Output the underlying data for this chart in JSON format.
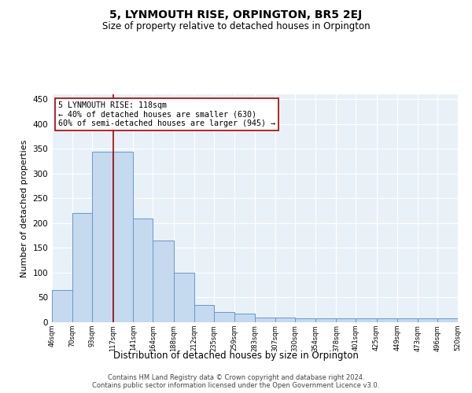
{
  "title": "5, LYNMOUTH RISE, ORPINGTON, BR5 2EJ",
  "subtitle": "Size of property relative to detached houses in Orpington",
  "xlabel": "Distribution of detached houses by size in Orpington",
  "ylabel": "Number of detached properties",
  "bin_edges": [
    46,
    70,
    93,
    117,
    141,
    164,
    188,
    212,
    235,
    259,
    283,
    307,
    330,
    354,
    378,
    401,
    425,
    449,
    473,
    496,
    520
  ],
  "bar_heights": [
    65,
    220,
    345,
    345,
    210,
    165,
    100,
    35,
    20,
    18,
    10,
    10,
    8,
    8,
    8,
    8,
    8,
    8,
    8,
    8
  ],
  "bar_color": "#c5d9ef",
  "bar_edge_color": "#6699cc",
  "property_size": 118,
  "vline_color": "#aa0000",
  "annotation_text": "5 LYNMOUTH RISE: 118sqm\n← 40% of detached houses are smaller (630)\n60% of semi-detached houses are larger (945) →",
  "annotation_box_color": "#ffffff",
  "annotation_box_edge_color": "#aa0000",
  "ylim": [
    0,
    460
  ],
  "yticks": [
    0,
    50,
    100,
    150,
    200,
    250,
    300,
    350,
    400,
    450
  ],
  "background_color": "#e8f0f8",
  "footer_text": "Contains HM Land Registry data © Crown copyright and database right 2024.\nContains public sector information licensed under the Open Government Licence v3.0.",
  "tick_labels": [
    "46sqm",
    "70sqm",
    "93sqm",
    "117sqm",
    "141sqm",
    "164sqm",
    "188sqm",
    "212sqm",
    "235sqm",
    "259sqm",
    "283sqm",
    "307sqm",
    "330sqm",
    "354sqm",
    "378sqm",
    "401sqm",
    "425sqm",
    "449sqm",
    "473sqm",
    "496sqm",
    "520sqm"
  ]
}
